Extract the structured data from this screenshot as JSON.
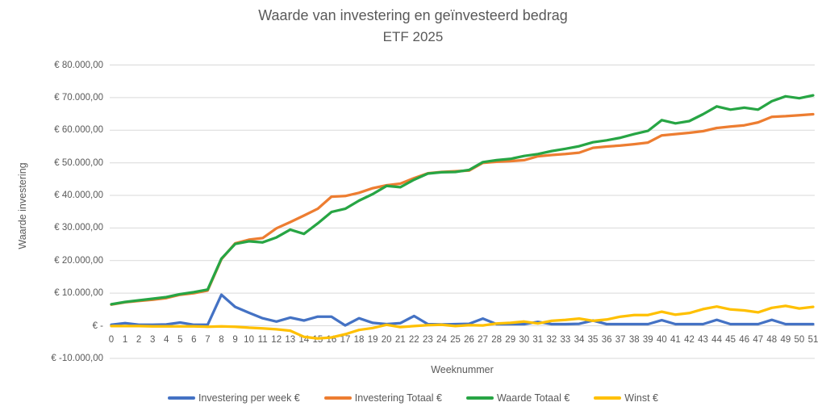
{
  "chart": {
    "title": "Waarde van investering en geïnvesteerd bedrag",
    "subtitle": "ETF 2025",
    "x_axis_title": "Weeknummer",
    "y_axis_title": "Waarde investering",
    "background_color": "#FFFFFF",
    "gridline_color": "#D9D9D9",
    "text_color": "#595959"
  },
  "chart_data": {
    "type": "line",
    "title": "Waarde van investering en geïnvesteerd bedrag",
    "subtitle": "ETF 2025",
    "xlabel": "Weeknummer",
    "ylabel": "Waarde investering",
    "grid": true,
    "legend_position": "bottom",
    "ylim": [
      -10000,
      80000
    ],
    "yticks": [
      80000,
      70000,
      60000,
      50000,
      40000,
      30000,
      20000,
      10000,
      0,
      -10000
    ],
    "ytick_labels": [
      "€ 80.000,00",
      "€ 70.000,00",
      "€ 60.000,00",
      "€ 50.000,00",
      "€ 40.000,00",
      "€ 30.000,00",
      "€ 20.000,00",
      "€ 10.000,00",
      "€ -",
      "€ -10.000,00"
    ],
    "x": [
      0,
      1,
      2,
      3,
      4,
      5,
      6,
      7,
      8,
      9,
      10,
      11,
      12,
      13,
      14,
      15,
      16,
      17,
      18,
      19,
      20,
      21,
      22,
      23,
      24,
      25,
      26,
      27,
      28,
      29,
      30,
      31,
      32,
      33,
      34,
      35,
      36,
      37,
      38,
      39,
      40,
      41,
      42,
      43,
      44,
      45,
      46,
      47,
      48,
      49,
      50,
      51
    ],
    "series": [
      {
        "name": "Investering per week €",
        "color": "#4472C4",
        "values": [
          300,
          800,
          300,
          300,
          400,
          1000,
          300,
          300,
          9500,
          5800,
          4000,
          2300,
          1300,
          2500,
          1600,
          2800,
          2800,
          100,
          2300,
          900,
          500,
          800,
          3000,
          500,
          400,
          500,
          600,
          2200,
          500,
          500,
          500,
          1200,
          500,
          500,
          600,
          1600,
          500,
          500,
          500,
          500,
          1700,
          500,
          500,
          500,
          1800,
          500,
          500,
          500,
          1800,
          500,
          500,
          500
        ]
      },
      {
        "name": "Investering Totaal €",
        "color": "#ED7D31",
        "values": [
          6500,
          7200,
          7600,
          8000,
          8500,
          9500,
          10000,
          10800,
          20400,
          25300,
          26400,
          26900,
          29900,
          31800,
          33800,
          35900,
          39600,
          39800,
          40800,
          42200,
          43100,
          43600,
          45300,
          46800,
          47200,
          47400,
          47600,
          50000,
          50300,
          50500,
          50800,
          52000,
          52400,
          52700,
          53100,
          54600,
          55000,
          55300,
          55700,
          56200,
          58400,
          58800,
          59200,
          59700,
          60700,
          61100,
          61500,
          62400,
          64100,
          64300,
          64600,
          64900
        ]
      },
      {
        "name": "Waarde Totaal €",
        "color": "#27A544",
        "values": [
          6600,
          7300,
          7800,
          8300,
          8800,
          9700,
          10300,
          11100,
          20600,
          25100,
          25900,
          25600,
          27100,
          29500,
          28200,
          31400,
          34900,
          35900,
          38400,
          40400,
          42900,
          42500,
          44800,
          46700,
          47100,
          47200,
          47800,
          50200,
          50800,
          51200,
          52100,
          52700,
          53600,
          54300,
          55100,
          56300,
          56900,
          57700,
          58800,
          59800,
          63100,
          62100,
          62800,
          64900,
          67300,
          66300,
          66900,
          66300,
          68900,
          70400,
          69800,
          70700
        ]
      },
      {
        "name": "Winst €",
        "color": "#FFC000",
        "values": [
          -100,
          -100,
          -100,
          -200,
          -200,
          -200,
          -200,
          -300,
          -200,
          -300,
          -600,
          -800,
          -1100,
          -1500,
          -3400,
          -3900,
          -3600,
          -2600,
          -1300,
          -700,
          300,
          -400,
          -100,
          200,
          300,
          -100,
          200,
          100,
          700,
          900,
          1300,
          700,
          1500,
          1800,
          2200,
          1500,
          1900,
          2800,
          3300,
          3300,
          4300,
          3400,
          3900,
          5100,
          5900,
          5000,
          4700,
          4100,
          5500,
          6100,
          5300,
          5800
        ]
      }
    ]
  }
}
